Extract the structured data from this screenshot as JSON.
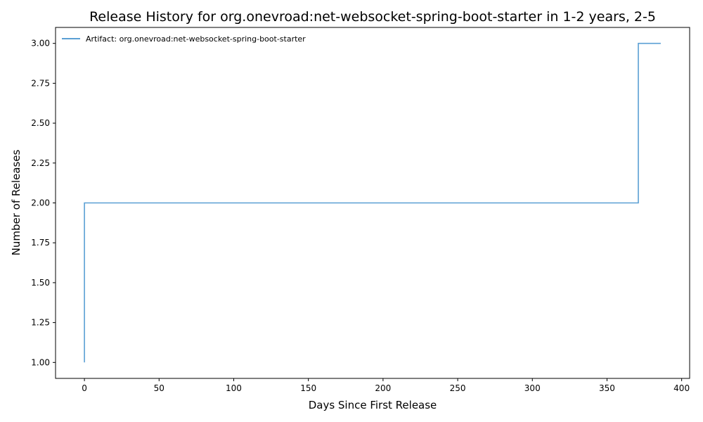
{
  "chart_data": {
    "type": "line",
    "title": "Release History for org.onevroad:net-websocket-spring-boot-starter in 1-2 years, 2-5",
    "xlabel": "Days Since First Release",
    "ylabel": "Number of Releases",
    "xlim": [
      -19.35,
      405.35
    ],
    "ylim": [
      0.9,
      3.1
    ],
    "xticks": [
      0,
      50,
      100,
      150,
      200,
      250,
      300,
      350,
      400
    ],
    "xtick_labels": [
      "0",
      "50",
      "100",
      "150",
      "200",
      "250",
      "300",
      "350",
      "400"
    ],
    "yticks": [
      1.0,
      1.25,
      1.5,
      1.75,
      2.0,
      2.25,
      2.5,
      2.75,
      3.0
    ],
    "ytick_labels": [
      "1.00",
      "1.25",
      "1.50",
      "1.75",
      "2.00",
      "2.25",
      "2.50",
      "2.75",
      "3.00"
    ],
    "grid": false,
    "legend_position": "top-left",
    "step": "post",
    "series": [
      {
        "name": "Artifact: org.onevroad:net-websocket-spring-boot-starter",
        "color": "#5a9fd4",
        "x": [
          0,
          0,
          371,
          386
        ],
        "y": [
          1,
          2,
          3,
          3
        ]
      }
    ]
  }
}
